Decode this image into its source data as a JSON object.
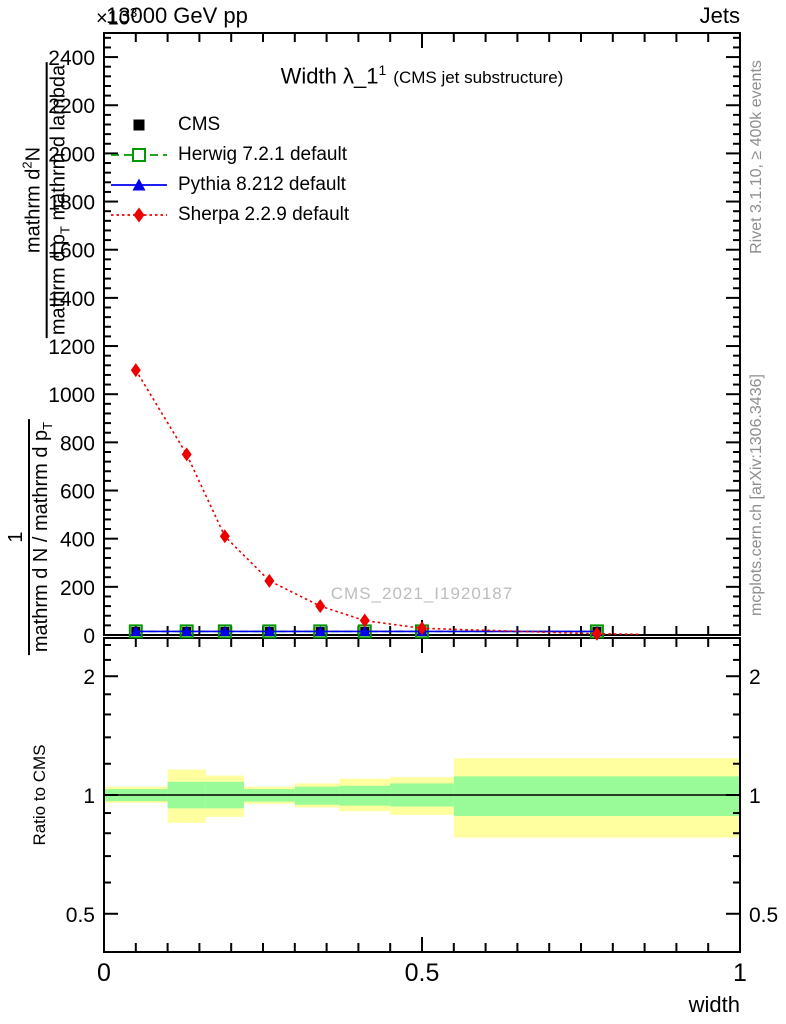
{
  "header": {
    "left": "13000 GeV pp",
    "right": "Jets",
    "exponent_base": "×10",
    "exponent_power": "3"
  },
  "title": {
    "main": "Width λ_1",
    "sup": "1",
    "paren": "(CMS jet substructure)"
  },
  "watermark": "CMS_2021_I1920187",
  "side_labels": {
    "rivet": "Rivet 3.1.10, ≥ 400k events",
    "mcplots": "mcplots.cern.ch [arXiv:1306.3436]"
  },
  "ylabel": {
    "frac1": {
      "num": "1",
      "den_main": "mathrm d N / mathrm d p",
      "den_sub": "T"
    },
    "frac2": {
      "num_pre": "mathrm d",
      "num_sup": "2",
      "num_post": "N",
      "den_pre": "mathrm d p",
      "den_sub": "T",
      "den_post": " mathrm d lambda"
    }
  },
  "ratio_label": "Ratio to CMS",
  "xlabel": "width",
  "colors": {
    "cms": "#000000",
    "herwig": "#009900",
    "pythia": "#0000ee",
    "sherpa": "#ee0000",
    "band_yellow": "#ffffa0",
    "band_green": "#98fb98",
    "frame": "#000000",
    "gray_text": "#8e8e8e",
    "watermark": "#bdbdbd"
  },
  "chart_data": {
    "type": "line",
    "main": {
      "x_range": [
        0,
        1
      ],
      "y_range": [
        0,
        2500
      ],
      "y_scale_exponent": "×10^3",
      "grid": false,
      "y_tick_labels": [
        "0",
        "200",
        "400",
        "600",
        "800",
        "1000",
        "1200",
        "1400",
        "1600",
        "1800",
        "2000",
        "2200",
        "2400"
      ],
      "x_ticks": [
        {
          "v": 0,
          "label": "0"
        },
        {
          "v": 0.5,
          "label": "0.5"
        },
        {
          "v": 1,
          "label": "1"
        }
      ],
      "x_minor_step": 0.05,
      "series": [
        {
          "name": "CMS",
          "color_key": "cms",
          "line": "none",
          "marker": "square-filled",
          "x": [
            0.05,
            0.13,
            0.19,
            0.26,
            0.34,
            0.41,
            0.5,
            0.775
          ],
          "y": [
            15,
            15,
            15,
            15,
            15,
            15,
            15,
            15
          ]
        },
        {
          "name": "Herwig 7.2.1 default",
          "color_key": "herwig",
          "line": "dashed",
          "marker": "square-open",
          "x": [
            0.05,
            0.13,
            0.19,
            0.26,
            0.34,
            0.41,
            0.5,
            0.775
          ],
          "y": [
            15,
            15,
            15,
            15,
            15,
            15,
            15,
            15
          ]
        },
        {
          "name": "Pythia 8.212 default",
          "color_key": "pythia",
          "line": "solid",
          "marker": "triangle-filled",
          "x": [
            0.05,
            0.13,
            0.19,
            0.26,
            0.34,
            0.41,
            0.5,
            0.775
          ],
          "y": [
            15,
            15,
            15,
            15,
            15,
            15,
            15,
            15
          ]
        },
        {
          "name": "Sherpa 2.2.9 default",
          "color_key": "sherpa",
          "line": "dotted",
          "marker": "diamond-filled",
          "x": [
            0.05,
            0.13,
            0.19,
            0.26,
            0.34,
            0.41,
            0.5,
            0.775
          ],
          "y": [
            1100,
            750,
            410,
            225,
            120,
            60,
            28,
            5
          ],
          "line_extend": {
            "x": 0.84,
            "y": 3
          }
        }
      ]
    },
    "ratio": {
      "scale": "log",
      "range": [
        0.4,
        2.5
      ],
      "major_ticks": [
        {
          "v": 0.5,
          "label": "0.5"
        },
        {
          "v": 1,
          "label": "1"
        },
        {
          "v": 2,
          "label": "2"
        }
      ],
      "minor_ticks": [
        0.4,
        0.6,
        0.7,
        0.8,
        0.9,
        1.2,
        1.4,
        1.6,
        1.8,
        2.2,
        2.4
      ],
      "unity_line": 1,
      "bands": {
        "bin_edges": [
          0,
          0.1,
          0.16,
          0.22,
          0.3,
          0.37,
          0.45,
          0.55,
          1.0
        ],
        "yellow_lo": [
          0.955,
          0.85,
          0.88,
          0.95,
          0.93,
          0.91,
          0.89,
          0.78
        ],
        "yellow_hi": [
          1.05,
          1.16,
          1.12,
          1.05,
          1.07,
          1.1,
          1.11,
          1.24
        ],
        "green_lo": [
          0.965,
          0.925,
          0.925,
          0.962,
          0.945,
          0.94,
          0.935,
          0.885
        ],
        "green_hi": [
          1.035,
          1.08,
          1.08,
          1.035,
          1.05,
          1.055,
          1.07,
          1.115
        ]
      }
    }
  }
}
